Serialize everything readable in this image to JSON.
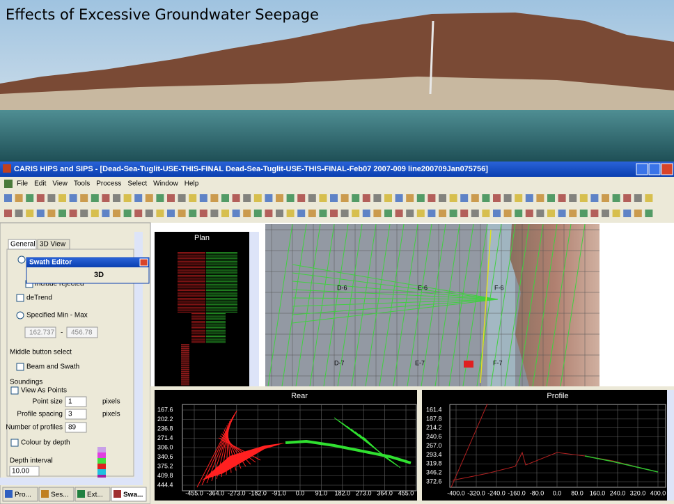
{
  "slide": {
    "title": "Effects of Excessive Groundwater Seepage"
  },
  "window": {
    "title": "CARIS HIPS and SIPS - [Dead-Sea-Tuglit-USE-THIS-FINAL Dead-Sea-Tuglit-USE-THIS-FINAL-Feb07 2007-009 line200709Jan075756]"
  },
  "menu": [
    "File",
    "Edit",
    "View",
    "Tools",
    "Process",
    "Select",
    "Window",
    "Help"
  ],
  "panel": {
    "tabs": [
      "General",
      "3D View"
    ],
    "swath_editor": {
      "title": "Swath Editor",
      "label_3d": "3D"
    },
    "include_rejected": "Include rejected",
    "detrend": "deTrend",
    "specified": "Specified Min - Max",
    "min": "162.737",
    "dash": "-",
    "max": "456.78",
    "middle_button": "Middle button select",
    "beam_swath": "Beam and Swath",
    "soundings": "Soundings",
    "view_points": "View As Points",
    "point_size": "Point size",
    "point_size_value": "1",
    "pixels": "pixels",
    "profile_spacing": "Profile spacing",
    "profile_spacing_value": "3",
    "pixels2": "pixels",
    "num_profiles": "Number of profiles",
    "num_profiles_value": "89",
    "colour_depth": "Colour by depth",
    "depth_interval": "Depth interval",
    "depth_value": "10.00"
  },
  "bottom_tabs": [
    "Pro...",
    "Ses...",
    "Ext...",
    "Swa..."
  ],
  "plan": {
    "title": "Plan"
  },
  "map": {
    "labels": [
      "D-6",
      "E-6",
      "F-6",
      "D-7",
      "E-7",
      "F-7"
    ]
  },
  "rear": {
    "title": "Rear",
    "y_labels": [
      "167.6",
      "202.2",
      "236.8",
      "271.4",
      "306.0",
      "340.6",
      "375.2",
      "409.8",
      "444.4"
    ],
    "x_labels": [
      "-455.0",
      "-364.0",
      "-273.0",
      "-182.0",
      "-91.0",
      "0.0",
      "91.0",
      "182.0",
      "273.0",
      "364.0",
      "455.0"
    ]
  },
  "profile": {
    "title": "Profile",
    "y_labels": [
      "161.4",
      "187.8",
      "214.2",
      "240.6",
      "267.0",
      "293.4",
      "319.8",
      "346.2",
      "372.6"
    ],
    "x_labels": [
      "-400.0",
      "-320.0",
      "-240.0",
      "-160.0",
      "-80.0",
      "0.0",
      "80.0",
      "160.0",
      "240.0",
      "320.0",
      "400.0"
    ]
  }
}
